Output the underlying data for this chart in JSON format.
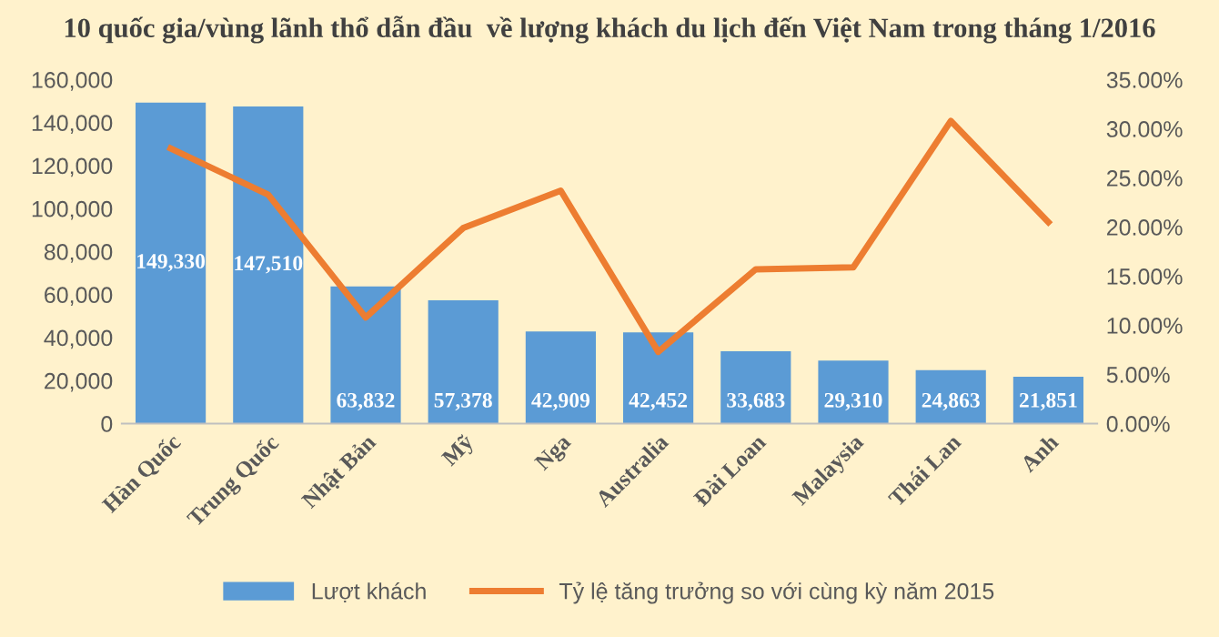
{
  "chart_data": {
    "type": "bar",
    "title": "10 quốc gia/vùng lãnh thổ dẫn đầu  về lượng khách du lịch đến Việt Nam trong tháng 1/2016",
    "categories": [
      "Hàn Quốc",
      "Trung Quốc",
      "Nhật Bản",
      "Mỹ",
      "Nga",
      "Australia",
      "Đài Loan",
      "Malaysia",
      "Thái Lan",
      "Anh"
    ],
    "series": [
      {
        "name": "Lượt khách",
        "color": "#5b9bd5",
        "values": [
          149330,
          147510,
          63832,
          57378,
          42909,
          42452,
          33683,
          29310,
          24863,
          21851
        ],
        "value_labels": [
          "149,330",
          "147,510",
          "63,832",
          "57,378",
          "42,909",
          "42,452",
          "33,683",
          "29,310",
          "24,863",
          "21,851"
        ]
      },
      {
        "name": "Tỷ lệ tăng trưởng so với cùng kỳ năm 2015",
        "type": "line",
        "axis": "y2",
        "color": "#ed7d31",
        "values": [
          28.0,
          23.3,
          10.8,
          19.9,
          23.7,
          7.3,
          15.7,
          15.9,
          30.8,
          20.5
        ]
      }
    ],
    "ylim": [
      0,
      160000
    ],
    "yticks": [
      {
        "value": 0,
        "label": "0"
      },
      {
        "value": 20000,
        "label": "20,000"
      },
      {
        "value": 40000,
        "label": "40,000"
      },
      {
        "value": 60000,
        "label": "60,000"
      },
      {
        "value": 80000,
        "label": "80,000"
      },
      {
        "value": 100000,
        "label": "100,000"
      },
      {
        "value": 120000,
        "label": "120,000"
      },
      {
        "value": 140000,
        "label": "140,000"
      },
      {
        "value": 160000,
        "label": "160,000"
      }
    ],
    "y2lim": [
      0,
      35
    ],
    "y2ticks": [
      {
        "value": 0,
        "label": "0.00%"
      },
      {
        "value": 5,
        "label": "5.00%"
      },
      {
        "value": 10,
        "label": "10.00%"
      },
      {
        "value": 15,
        "label": "15.00%"
      },
      {
        "value": 20,
        "label": "20.00%"
      },
      {
        "value": 25,
        "label": "25.00%"
      },
      {
        "value": 30,
        "label": "30.00%"
      },
      {
        "value": 35,
        "label": "35.00%"
      }
    ],
    "grid": false,
    "legend": "bottom",
    "marker": "none",
    "line_style": "solid"
  }
}
